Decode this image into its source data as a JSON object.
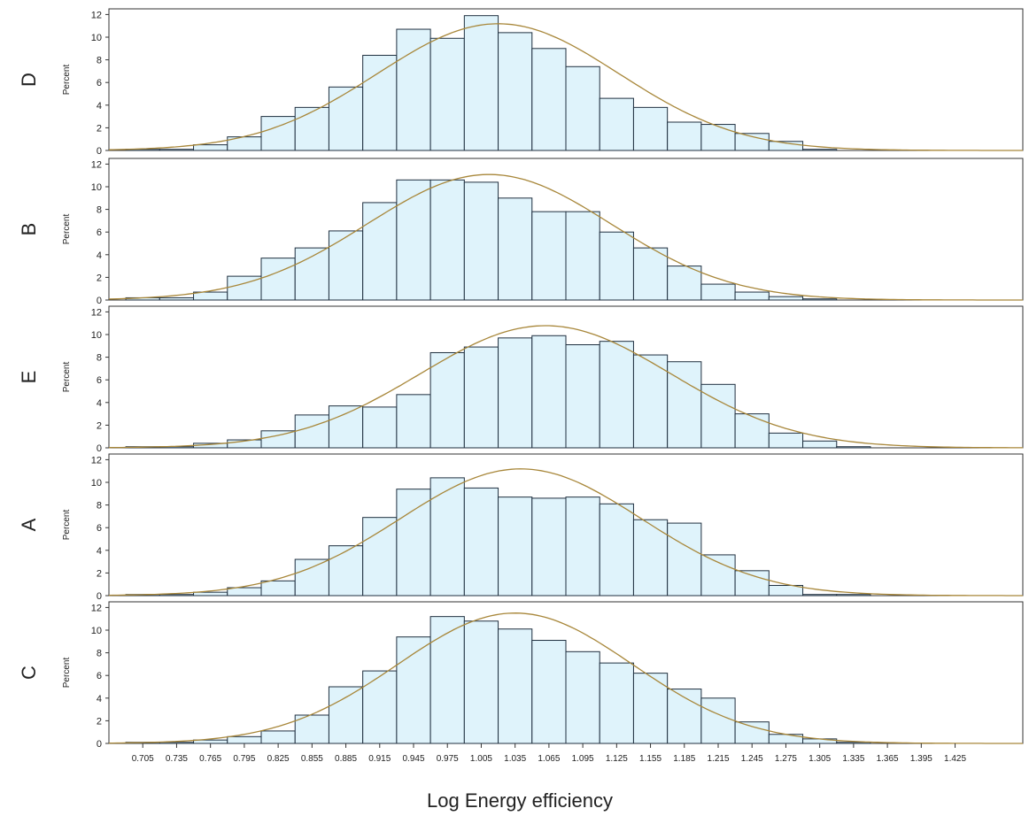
{
  "chart_data": [
    {
      "type": "bar",
      "panel_label": "D",
      "ylabel": "Percent",
      "ylim": [
        0,
        12.5
      ],
      "yticks": [
        0,
        2,
        4,
        6,
        8,
        10,
        12
      ],
      "x": [
        0.705,
        0.735,
        0.765,
        0.795,
        0.825,
        0.855,
        0.885,
        0.915,
        0.945,
        0.975,
        1.005,
        1.035,
        1.065,
        1.095,
        1.125,
        1.155,
        1.185,
        1.215,
        1.245,
        1.275,
        1.305,
        1.335,
        1.365,
        1.395,
        1.425
      ],
      "values": [
        0.1,
        0.1,
        0.5,
        1.2,
        3.0,
        3.8,
        5.6,
        8.4,
        10.7,
        9.9,
        11.9,
        10.4,
        9.0,
        7.4,
        4.6,
        3.8,
        2.5,
        2.3,
        1.5,
        0.8,
        0.1,
        0,
        0,
        0,
        0
      ],
      "normal_curve": {
        "mean": 1.02,
        "sd": 0.107
      }
    },
    {
      "type": "bar",
      "panel_label": "B",
      "ylabel": "Percent",
      "ylim": [
        0,
        12.5
      ],
      "yticks": [
        0,
        2,
        4,
        6,
        8,
        10,
        12
      ],
      "x": [
        0.705,
        0.735,
        0.765,
        0.795,
        0.825,
        0.855,
        0.885,
        0.915,
        0.945,
        0.975,
        1.005,
        1.035,
        1.065,
        1.095,
        1.125,
        1.155,
        1.185,
        1.215,
        1.245,
        1.275,
        1.305,
        1.335,
        1.365,
        1.395,
        1.425
      ],
      "values": [
        0.2,
        0.2,
        0.7,
        2.1,
        3.7,
        4.6,
        6.1,
        8.6,
        10.6,
        10.6,
        10.4,
        9.0,
        7.8,
        7.8,
        6.0,
        4.6,
        3.0,
        1.4,
        0.7,
        0.3,
        0.1,
        0,
        0,
        0,
        0
      ],
      "normal_curve": {
        "mean": 1.012,
        "sd": 0.108
      }
    },
    {
      "type": "bar",
      "panel_label": "E",
      "ylabel": "Percent",
      "ylim": [
        0,
        12.5
      ],
      "yticks": [
        0,
        2,
        4,
        6,
        8,
        10,
        12
      ],
      "x": [
        0.705,
        0.735,
        0.765,
        0.795,
        0.825,
        0.855,
        0.885,
        0.915,
        0.945,
        0.975,
        1.005,
        1.035,
        1.065,
        1.095,
        1.125,
        1.155,
        1.185,
        1.215,
        1.245,
        1.275,
        1.305,
        1.335,
        1.365,
        1.395,
        1.425
      ],
      "values": [
        0.1,
        0.1,
        0.4,
        0.7,
        1.5,
        2.9,
        3.7,
        3.6,
        4.7,
        8.4,
        8.9,
        9.7,
        9.9,
        9.1,
        9.4,
        8.2,
        7.6,
        5.6,
        3.0,
        1.3,
        0.6,
        0.1,
        0,
        0,
        0
      ],
      "normal_curve": {
        "mean": 1.062,
        "sd": 0.111
      }
    },
    {
      "type": "bar",
      "panel_label": "A",
      "ylabel": "Percent",
      "ylim": [
        0,
        12.5
      ],
      "yticks": [
        0,
        2,
        4,
        6,
        8,
        10,
        12
      ],
      "x": [
        0.705,
        0.735,
        0.765,
        0.795,
        0.825,
        0.855,
        0.885,
        0.915,
        0.945,
        0.975,
        1.005,
        1.035,
        1.065,
        1.095,
        1.125,
        1.155,
        1.185,
        1.215,
        1.245,
        1.275,
        1.305,
        1.335,
        1.365,
        1.395,
        1.425
      ],
      "values": [
        0.1,
        0.1,
        0.3,
        0.7,
        1.3,
        3.2,
        4.4,
        6.9,
        9.4,
        10.4,
        9.5,
        8.7,
        8.6,
        8.7,
        8.1,
        6.7,
        6.4,
        3.6,
        2.2,
        0.9,
        0.1,
        0.1,
        0,
        0,
        0
      ],
      "normal_curve": {
        "mean": 1.04,
        "sd": 0.107
      }
    },
    {
      "type": "bar",
      "panel_label": "C",
      "ylabel": "Percent",
      "ylim": [
        0,
        12.5
      ],
      "yticks": [
        0,
        2,
        4,
        6,
        8,
        10,
        12
      ],
      "x": [
        0.705,
        0.735,
        0.765,
        0.795,
        0.825,
        0.855,
        0.885,
        0.915,
        0.945,
        0.975,
        1.005,
        1.035,
        1.065,
        1.095,
        1.125,
        1.155,
        1.185,
        1.215,
        1.245,
        1.275,
        1.305,
        1.335,
        1.365,
        1.395,
        1.425
      ],
      "values": [
        0.1,
        0.1,
        0.3,
        0.6,
        1.1,
        2.5,
        5.0,
        6.4,
        9.4,
        11.2,
        10.8,
        10.1,
        9.1,
        8.1,
        7.1,
        6.2,
        4.8,
        4.0,
        1.9,
        0.8,
        0.4,
        0.1,
        0,
        0,
        0
      ],
      "normal_curve": {
        "mean": 1.035,
        "sd": 0.104
      }
    }
  ],
  "axes": {
    "xticks": [
      "0.705",
      "0.735",
      "0.765",
      "0.795",
      "0.825",
      "0.855",
      "0.885",
      "0.915",
      "0.945",
      "0.975",
      "1.005",
      "1.035",
      "1.065",
      "1.095",
      "1.125",
      "1.155",
      "1.185",
      "1.215",
      "1.245",
      "1.275",
      "1.305",
      "1.335",
      "1.365",
      "1.395",
      "1.425"
    ],
    "xlabel": "Log Energy efficiency"
  },
  "colors": {
    "bar_fill": "#dff3fb",
    "bar_edge": "#1f2f3f",
    "curve": "#a8873a"
  }
}
